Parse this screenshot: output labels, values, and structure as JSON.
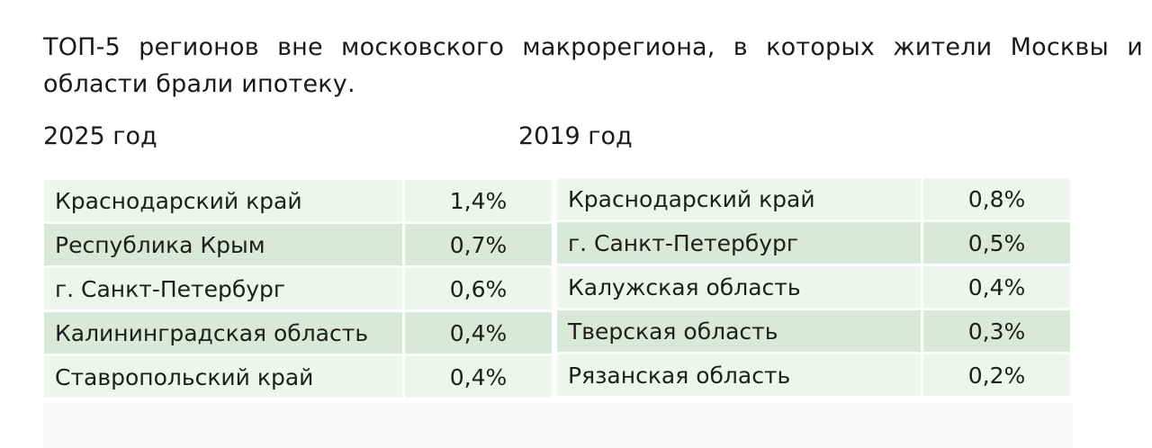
{
  "title": "ТОП-5 регионов вне московского макрорегиона, в которых жители Москвы и области брали ипотеку.",
  "left_table": {
    "year_label": "2025 год",
    "rows": [
      {
        "region": "Краснодарский край",
        "value": "1,4%"
      },
      {
        "region": "Республика Крым",
        "value": "0,7%"
      },
      {
        "region": "г. Санкт-Петербург",
        "value": "0,6%"
      },
      {
        "region": "Калининградская область",
        "value": "0,4%"
      },
      {
        "region": "Ставропольский край",
        "value": "0,4%"
      }
    ]
  },
  "right_table": {
    "year_label": "2019 год",
    "rows": [
      {
        "region": "Краснодарский край",
        "value": "0,8%"
      },
      {
        "region": "г. Санкт-Петербург",
        "value": "0,5%"
      },
      {
        "region": "Калужская область",
        "value": "0,4%"
      },
      {
        "region": "Тверская область",
        "value": "0,3%"
      },
      {
        "region": "Рязанская область",
        "value": "0,2%"
      }
    ]
  },
  "colors": {
    "row_dark": "#d8e9d8",
    "row_light": "#edf5ed",
    "text": "#1a1a1a"
  }
}
